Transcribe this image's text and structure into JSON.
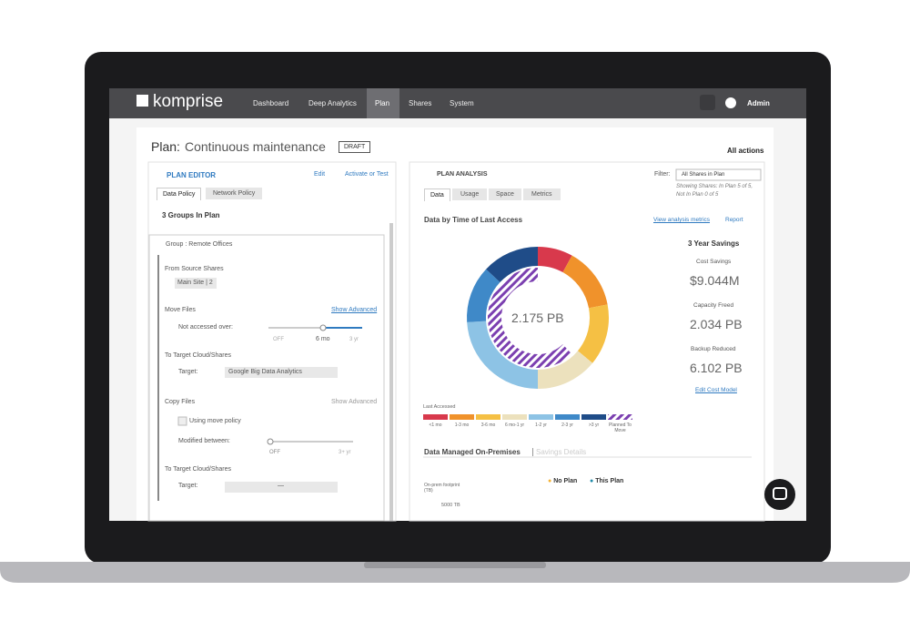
{
  "nav": {
    "logo": "komprise",
    "items": [
      "Dashboard",
      "Deep Analytics",
      "Plan",
      "Shares",
      "System"
    ],
    "user": "Admin"
  },
  "header": {
    "title": "Plan:",
    "plan_name": "Continuous maintenance",
    "status": "DRAFT",
    "actions": "All actions"
  },
  "editor": {
    "title": "PLAN EDITOR",
    "edit": "Edit",
    "activate": "Activate or Test",
    "tabs": [
      "Data Policy",
      "Network Policy"
    ],
    "groups": "3 Groups In Plan",
    "group": "Group : Remote Offices",
    "source_label": "From Source Shares",
    "source_value": "Main Site | 2",
    "move": {
      "title": "Move Files",
      "advanced": "Show Advanced",
      "condition": "Not accessed over:",
      "slider": [
        "OFF",
        "6 mo",
        "3 yr"
      ],
      "target_title": "To Target Cloud/Shares",
      "target_label": "Target:",
      "target_value": "Google Big Data Analytics"
    },
    "copy": {
      "title": "Copy Files",
      "advanced": "Show Advanced",
      "checkbox": "Using move policy",
      "condition": "Modified between:",
      "slider": [
        "OFF",
        "3+ yr"
      ],
      "target_title": "To Target Cloud/Shares",
      "target_label": "Target:",
      "target_value": "—"
    }
  },
  "analysis": {
    "title": "PLAN ANALYSIS",
    "filter_label": "Filter:",
    "filter_value": "All Shares in Plan",
    "showing": [
      "Showing Shares: In Plan 5 of 5,",
      "Not In Plan 0 of 5"
    ],
    "tabs": [
      "Data",
      "Usage",
      "Space",
      "Metrics"
    ],
    "chart_title": "Data by Time of Last Access",
    "metrics_link": "View analysis metrics",
    "report": "Report",
    "donut": {
      "type": "pie",
      "center_label": "2.175 PB",
      "legend_title": "Last Accessed",
      "categories": [
        "<1 mo",
        "1-3 mo",
        "3-6 mo",
        "6 mo-1 yr",
        "1-2 yr",
        "2-3 yr",
        ">3 yr"
      ],
      "colors": [
        "#d8394c",
        "#f0922b",
        "#f5c044",
        "#ece1bd",
        "#8dc3e5",
        "#3f89c8",
        "#1f4c88"
      ],
      "values": [
        8,
        14,
        14,
        14,
        24,
        13,
        13
      ],
      "planned": {
        "name": "Planned To Move",
        "color": "#7b3fb0",
        "value": 62
      }
    },
    "savings": {
      "title": "3 Year Savings",
      "items": [
        {
          "label": "Cost Savings",
          "value": "$9.044M"
        },
        {
          "label": "Capacity Freed",
          "value": "2.034 PB"
        },
        {
          "label": "Backup Reduced",
          "value": "6.102 PB"
        }
      ],
      "edit": "Edit Cost Model"
    },
    "managed": {
      "title": "Data Managed On-Premises",
      "details": "Savings Details",
      "legend": [
        "No Plan",
        "This Plan"
      ],
      "legend_colors": [
        "#f5b335",
        "#1f8aa8"
      ],
      "axis_label": "On-prem footprint (TB)",
      "tick": "5000 TB"
    }
  }
}
